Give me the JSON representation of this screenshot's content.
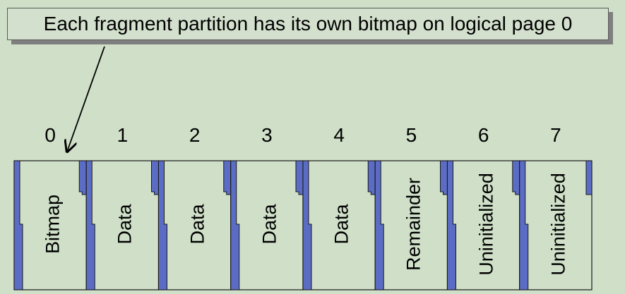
{
  "callout": {
    "text": "Each fragment partition has its own bitmap on logical page 0"
  },
  "pages": [
    {
      "number": "0",
      "label": "Bitmap"
    },
    {
      "number": "1",
      "label": "Data"
    },
    {
      "number": "2",
      "label": "Data"
    },
    {
      "number": "3",
      "label": "Data"
    },
    {
      "number": "4",
      "label": "Data"
    },
    {
      "number": "5",
      "label": "Remainder"
    },
    {
      "number": "6",
      "label": "Uninitialized"
    },
    {
      "number": "7",
      "label": "Uninitialized"
    }
  ],
  "colors": {
    "background": "#cfdfc8",
    "strip": "#5b6cc4",
    "outline": "#1a1a1a"
  }
}
